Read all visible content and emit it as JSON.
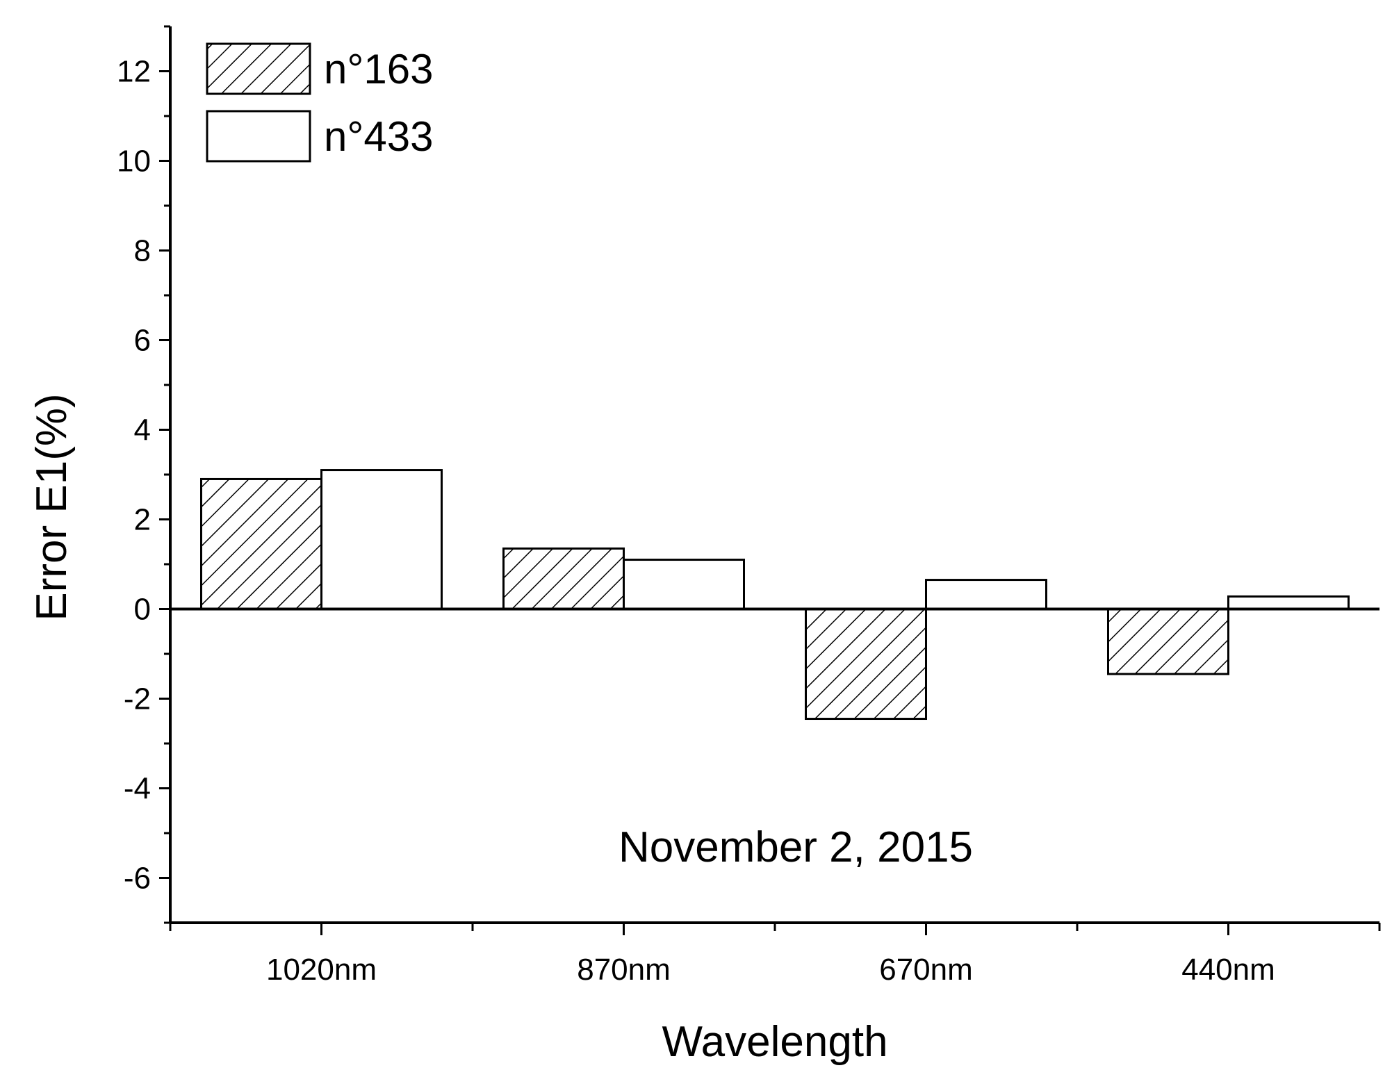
{
  "chart_data": {
    "type": "bar",
    "categories": [
      "1020nm",
      "870nm",
      "670nm",
      "440nm"
    ],
    "series": [
      {
        "name": "n°163",
        "values": [
          2.9,
          1.35,
          -2.45,
          -1.45
        ],
        "fill": "hatch"
      },
      {
        "name": "n°433",
        "values": [
          3.1,
          1.1,
          0.65,
          0.28
        ],
        "fill": "#ffffff"
      }
    ],
    "xlabel": "Wavelength",
    "ylabel": "Error E1(%)",
    "ylim": [
      -7,
      13
    ],
    "yticks": [
      -6,
      -4,
      -2,
      0,
      2,
      4,
      6,
      8,
      10,
      12
    ],
    "annotation": "November 2, 2015",
    "legend_position": "top-left",
    "grid": false
  }
}
